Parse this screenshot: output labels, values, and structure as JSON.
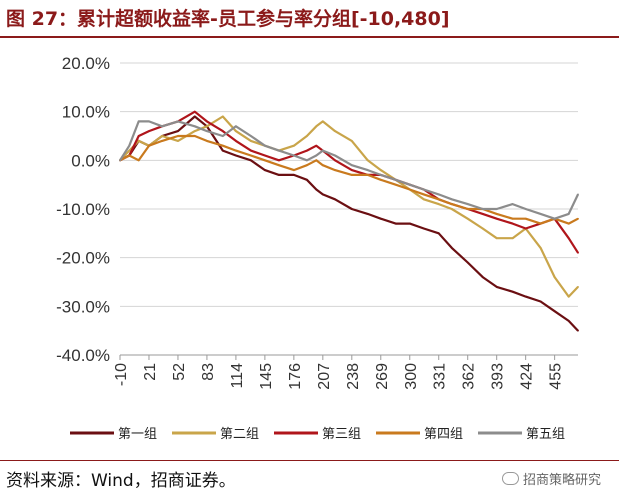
{
  "header": {
    "title": "图 27：累计超额收益率-员工参与率分组[-10,480]"
  },
  "footer": {
    "source": "资料来源：Wind，招商证券。",
    "brand": "招商策略研究"
  },
  "chart_data": {
    "type": "line",
    "title": "累计超额收益率-员工参与率分组[-10,480]",
    "xlabel": "",
    "ylabel": "",
    "xlim": [
      -10,
      480
    ],
    "ylim": [
      -40,
      20
    ],
    "y_ticks": [
      20,
      10,
      0,
      -10,
      -20,
      -30,
      -40
    ],
    "y_tick_labels": [
      "20.0%",
      "10.0%",
      "0.0%",
      "-10.0%",
      "-20.0%",
      "-30.0%",
      "-40.0%"
    ],
    "x_ticks": [
      -10,
      21,
      52,
      83,
      114,
      145,
      176,
      207,
      238,
      269,
      300,
      331,
      362,
      393,
      424,
      455
    ],
    "x_tick_labels": [
      "-10",
      "21",
      "52",
      "83",
      "114",
      "145",
      "176",
      "207",
      "238",
      "269",
      "300",
      "331",
      "362",
      "393",
      "424",
      "455"
    ],
    "legend_position": "bottom",
    "series": [
      {
        "name": "第一组",
        "color": "#6b0f12",
        "x": [
          -10,
          0,
          10,
          21,
          35,
          52,
          70,
          83,
          100,
          114,
          130,
          145,
          160,
          176,
          190,
          200,
          207,
          220,
          238,
          255,
          269,
          285,
          300,
          315,
          331,
          345,
          362,
          378,
          393,
          410,
          424,
          440,
          455,
          470,
          480
        ],
        "y": [
          0,
          1,
          4,
          3,
          5,
          6,
          9,
          7,
          2,
          1,
          0,
          -2,
          -3,
          -3,
          -4,
          -6,
          -7,
          -8,
          -10,
          -11,
          -12,
          -13,
          -13,
          -14,
          -15,
          -18,
          -21,
          -24,
          -26,
          -27,
          -28,
          -29,
          -31,
          -33,
          -35
        ]
      },
      {
        "name": "第二组",
        "color": "#c9a54a",
        "x": [
          -10,
          0,
          10,
          21,
          35,
          52,
          70,
          83,
          100,
          114,
          130,
          145,
          160,
          176,
          190,
          200,
          207,
          220,
          238,
          255,
          269,
          285,
          300,
          315,
          331,
          345,
          362,
          378,
          393,
          410,
          424,
          440,
          455,
          470,
          480
        ],
        "y": [
          0,
          2,
          4,
          3,
          5,
          4,
          6,
          7,
          9,
          6,
          4,
          3,
          2,
          3,
          5,
          7,
          8,
          6,
          4,
          0,
          -2,
          -4,
          -6,
          -8,
          -9,
          -10,
          -12,
          -14,
          -16,
          -16,
          -14,
          -18,
          -24,
          -28,
          -26
        ]
      },
      {
        "name": "第三组",
        "color": "#b0151b",
        "x": [
          -10,
          0,
          10,
          21,
          35,
          52,
          70,
          83,
          100,
          114,
          130,
          145,
          160,
          176,
          190,
          200,
          207,
          220,
          238,
          255,
          269,
          285,
          300,
          315,
          331,
          345,
          362,
          378,
          393,
          410,
          424,
          440,
          455,
          470,
          480
        ],
        "y": [
          0,
          1,
          5,
          6,
          7,
          8,
          10,
          8,
          6,
          4,
          2,
          1,
          0,
          1,
          2,
          3,
          2,
          0,
          -2,
          -3,
          -3,
          -4,
          -5,
          -6,
          -8,
          -9,
          -10,
          -11,
          -12,
          -13,
          -14,
          -13,
          -12,
          -16,
          -19
        ]
      },
      {
        "name": "第四组",
        "color": "#c97a1e",
        "x": [
          -10,
          0,
          10,
          21,
          35,
          52,
          70,
          83,
          100,
          114,
          130,
          145,
          160,
          176,
          190,
          200,
          207,
          220,
          238,
          255,
          269,
          285,
          300,
          315,
          331,
          345,
          362,
          378,
          393,
          410,
          424,
          440,
          455,
          470,
          480
        ],
        "y": [
          0,
          1,
          0,
          3,
          4,
          5,
          5,
          4,
          3,
          2,
          1,
          0,
          -1,
          -2,
          -1,
          0,
          -1,
          -2,
          -3,
          -3,
          -4,
          -5,
          -6,
          -7,
          -8,
          -9,
          -10,
          -10,
          -11,
          -12,
          -12,
          -13,
          -12,
          -13,
          -12
        ]
      },
      {
        "name": "第五组",
        "color": "#8c8c8c",
        "x": [
          -10,
          0,
          10,
          21,
          35,
          52,
          70,
          83,
          100,
          114,
          130,
          145,
          160,
          176,
          190,
          200,
          207,
          220,
          238,
          255,
          269,
          285,
          300,
          315,
          331,
          345,
          362,
          378,
          393,
          410,
          424,
          440,
          455,
          470,
          480
        ],
        "y": [
          0,
          3,
          8,
          8,
          7,
          8,
          7,
          6,
          5,
          7,
          5,
          3,
          2,
          1,
          0,
          1,
          2,
          1,
          -1,
          -2,
          -3,
          -4,
          -5,
          -6,
          -7,
          -8,
          -9,
          -10,
          -10,
          -9,
          -10,
          -11,
          -12,
          -11,
          -7
        ]
      }
    ]
  }
}
